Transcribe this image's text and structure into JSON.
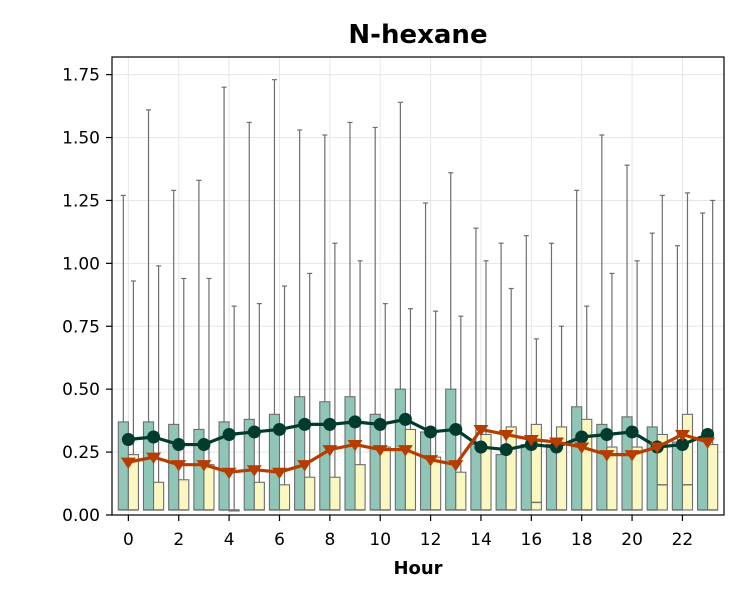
{
  "chart_data": {
    "type": "box",
    "title": "N-hexane",
    "xlabel": "Hour",
    "ylabel": "",
    "ylim": [
      0,
      1.82
    ],
    "xlim": [
      -0.65,
      23.65
    ],
    "x_ticks": [
      0,
      2,
      4,
      6,
      8,
      10,
      12,
      14,
      16,
      18,
      20,
      22
    ],
    "y_ticks": [
      0.0,
      0.25,
      0.5,
      0.75,
      1.0,
      1.25,
      1.5,
      1.75
    ],
    "y_tick_labels": [
      "0.00",
      "0.25",
      "0.50",
      "0.75",
      "1.00",
      "1.25",
      "1.50",
      "1.75"
    ],
    "grid": true,
    "hours": [
      0,
      1,
      2,
      3,
      4,
      5,
      6,
      7,
      8,
      9,
      10,
      11,
      12,
      13,
      14,
      15,
      16,
      17,
      18,
      19,
      20,
      21,
      22,
      23
    ],
    "series": [
      {
        "color": "#8fc6b8",
        "line_color": "#003b2e",
        "marker": "circle",
        "q1": [
          0.02,
          0.02,
          0.02,
          0.02,
          0.02,
          0.02,
          0.02,
          0.02,
          0.02,
          0.02,
          0.02,
          0.02,
          0.02,
          0.02,
          0.02,
          0.02,
          0.02,
          0.02,
          0.02,
          0.02,
          0.02,
          0.02,
          0.02,
          0.02
        ],
        "q3": [
          0.37,
          0.37,
          0.36,
          0.34,
          0.37,
          0.38,
          0.4,
          0.47,
          0.45,
          0.47,
          0.4,
          0.5,
          0.33,
          0.5,
          0.28,
          0.24,
          0.28,
          0.28,
          0.43,
          0.36,
          0.39,
          0.35,
          0.29,
          0.3
        ],
        "median": [
          0.02,
          0.02,
          0.02,
          0.02,
          0.02,
          0.02,
          0.02,
          0.02,
          0.02,
          0.02,
          0.02,
          0.02,
          0.02,
          0.02,
          0.02,
          0.02,
          0.02,
          0.02,
          0.02,
          0.02,
          0.02,
          0.02,
          0.02,
          0.02
        ],
        "whisker_high": [
          1.27,
          1.61,
          1.29,
          1.33,
          1.7,
          1.56,
          1.73,
          1.53,
          1.51,
          1.56,
          1.54,
          1.64,
          1.24,
          1.36,
          1.14,
          1.08,
          1.11,
          1.08,
          1.29,
          1.51,
          1.39,
          1.12,
          1.07,
          1.2
        ],
        "mean": [
          0.3,
          0.31,
          0.28,
          0.28,
          0.32,
          0.33,
          0.34,
          0.36,
          0.36,
          0.37,
          0.36,
          0.38,
          0.33,
          0.34,
          0.27,
          0.26,
          0.28,
          0.27,
          0.31,
          0.32,
          0.33,
          0.27,
          0.28,
          0.32
        ]
      },
      {
        "color": "#fbf7c0",
        "line_color": "#b63c00",
        "marker": "triangle-down",
        "q1": [
          0.02,
          0.02,
          0.02,
          0.02,
          0.02,
          0.02,
          0.02,
          0.02,
          0.02,
          0.02,
          0.02,
          0.02,
          0.02,
          0.02,
          0.02,
          0.02,
          0.02,
          0.02,
          0.02,
          0.02,
          0.02,
          0.02,
          0.02,
          0.02
        ],
        "q3": [
          0.24,
          0.13,
          0.14,
          0.2,
          0.02,
          0.13,
          0.12,
          0.15,
          0.15,
          0.2,
          0.27,
          0.34,
          0.23,
          0.17,
          0.32,
          0.35,
          0.36,
          0.35,
          0.38,
          0.27,
          0.27,
          0.32,
          0.4,
          0.28
        ],
        "median": [
          0.02,
          0.02,
          0.02,
          0.02,
          0.02,
          0.02,
          0.02,
          0.02,
          0.02,
          0.02,
          0.02,
          0.02,
          0.02,
          0.02,
          0.02,
          0.02,
          0.05,
          0.02,
          0.02,
          0.02,
          0.02,
          0.12,
          0.12,
          0.02
        ],
        "whisker_high": [
          0.93,
          0.99,
          0.94,
          0.94,
          0.83,
          0.84,
          0.91,
          0.96,
          1.08,
          1.01,
          0.84,
          0.82,
          0.81,
          0.79,
          1.01,
          0.9,
          0.7,
          0.75,
          0.83,
          0.96,
          1.01,
          1.27,
          1.28,
          1.25
        ],
        "mean": [
          0.21,
          0.23,
          0.2,
          0.2,
          0.17,
          0.18,
          0.17,
          0.2,
          0.26,
          0.28,
          0.26,
          0.26,
          0.22,
          0.2,
          0.34,
          0.32,
          0.3,
          0.29,
          0.27,
          0.24,
          0.24,
          0.27,
          0.32,
          0.29
        ]
      }
    ]
  }
}
